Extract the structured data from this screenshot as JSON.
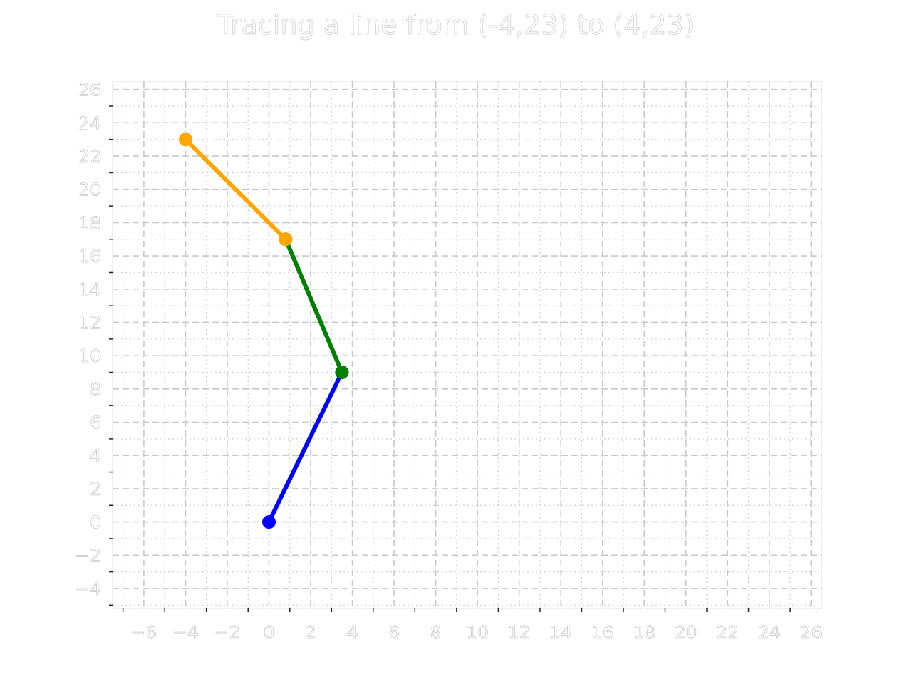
{
  "chart_data": {
    "type": "line",
    "title": "Tracing a line from (-4,23) to (4,23)",
    "xlabel": "",
    "ylabel": "",
    "xlim": [
      -7.5,
      26.5
    ],
    "ylim": [
      -5.2,
      26.5
    ],
    "x_ticks": [
      "−6",
      "−4",
      "−2",
      "0",
      "2",
      "4",
      "6",
      "8",
      "10",
      "12",
      "14",
      "16",
      "18",
      "20",
      "22",
      "24",
      "26"
    ],
    "y_ticks": [
      "−4",
      "−2",
      "0",
      "2",
      "4",
      "6",
      "8",
      "10",
      "12",
      "14",
      "16",
      "18",
      "20",
      "22",
      "24",
      "26"
    ],
    "grid": true,
    "series": [
      {
        "color": "#0000ff",
        "points": [
          [
            0,
            0
          ],
          [
            3.5,
            9
          ]
        ]
      },
      {
        "color": "#008000",
        "points": [
          [
            3.5,
            9
          ],
          [
            0.8,
            17
          ]
        ]
      },
      {
        "color": "#ffa500",
        "points": [
          [
            0.8,
            17
          ],
          [
            -4,
            23
          ]
        ]
      }
    ]
  }
}
